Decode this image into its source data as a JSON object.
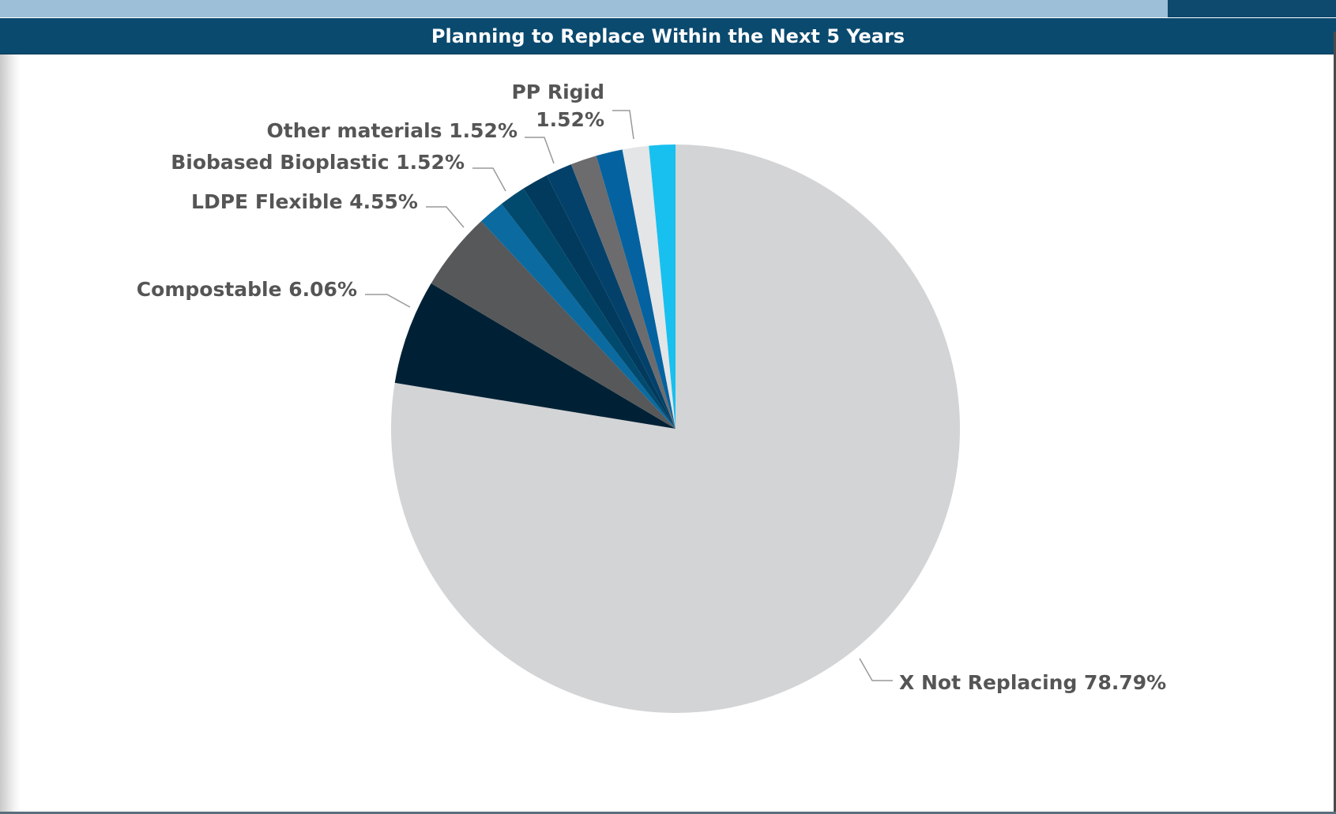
{
  "header": {
    "title": "Planning to Replace Within the Next 5 Years"
  },
  "colors": {
    "title_bar": "#0b4a6f",
    "top_strip": "#9dbfd8",
    "label_text": "#555555",
    "leader_line": "#999999"
  },
  "chart_data": {
    "type": "pie",
    "title": "Planning to Replace Within the Next 5 Years",
    "start_angle": "12 o'clock",
    "direction": "clockwise",
    "slices": [
      {
        "name": "X Not Replacing",
        "value": 78.79,
        "label": "X Not Replacing 78.79%",
        "color": "#d3d4d6"
      },
      {
        "name": "Compostable",
        "value": 6.06,
        "label": "Compostable 6.06%",
        "color": "#002135"
      },
      {
        "name": "LDPE Flexible",
        "value": 4.55,
        "label": "LDPE Flexible 4.55%",
        "color": "#57585a"
      },
      {
        "name": "Biobased Bioplastic",
        "value": 1.52,
        "label": "Biobased Bioplastic 1.52%",
        "color": "#0b6aa0"
      },
      {
        "name": "",
        "value": 1.52,
        "label": "",
        "color": "#014a6e"
      },
      {
        "name": "",
        "value": 1.52,
        "label": "",
        "color": "#013a5c"
      },
      {
        "name": "Other materials",
        "value": 1.52,
        "label": "Other materials 1.52%",
        "color": "#03416b"
      },
      {
        "name": "",
        "value": 1.52,
        "label": "",
        "color": "#6c6c6e"
      },
      {
        "name": "PP Rigid",
        "value": 1.52,
        "label": "PP Rigid 1.52%",
        "label_lines": [
          "PP Rigid",
          "1.52%"
        ],
        "color": "#0562a0"
      },
      {
        "name": "",
        "value": 1.52,
        "label": "",
        "color": "#e4e5e6"
      },
      {
        "name": "",
        "value": 1.52,
        "label": "",
        "color": "#18c0ef"
      }
    ]
  }
}
